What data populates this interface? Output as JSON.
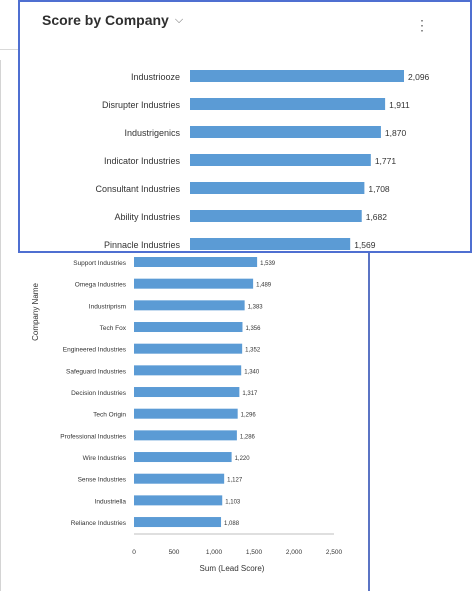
{
  "card": {
    "title": "Score by Company"
  },
  "colors": {
    "bar": "#5b9bd5",
    "accent_border": "#4f6fd1"
  },
  "chart_data": [
    {
      "type": "bar",
      "orientation": "horizontal",
      "categories": [
        "Industriooze",
        "Disrupter Industries",
        "Industrigenics",
        "Indicator Industries",
        "Consultant Industries",
        "Ability Industries",
        "Pinnacle Industries"
      ],
      "values": [
        2096,
        1911,
        1870,
        1771,
        1708,
        1682,
        1569
      ],
      "value_labels": [
        "2,096",
        "1,911",
        "1,870",
        "1,771",
        "1,708",
        "1,682",
        "1,569"
      ]
    },
    {
      "type": "bar",
      "orientation": "horizontal",
      "ylabel": "Company Name",
      "xlabel": "Sum (Lead Score)",
      "xlim": [
        0,
        2500
      ],
      "xticks": [
        "0",
        "500",
        "1,000",
        "1,500",
        "2,000",
        "2,500"
      ],
      "categories": [
        "Support Industries",
        "Omega Industries",
        "Industriprism",
        "Tech Fox",
        "Engineered Industries",
        "Safeguard Industries",
        "Decision Industries",
        "Tech Origin",
        "Professional Industries",
        "Wire Industries",
        "Sense Industries",
        "Industriella",
        "Reliance Industries"
      ],
      "values": [
        1539,
        1489,
        1383,
        1356,
        1352,
        1340,
        1317,
        1296,
        1286,
        1220,
        1127,
        1103,
        1088
      ],
      "value_labels": [
        "1,539",
        "1,489",
        "1,383",
        "1,356",
        "1,352",
        "1,340",
        "1,317",
        "1,296",
        "1,286",
        "1,220",
        "1,127",
        "1,103",
        "1,088"
      ]
    }
  ]
}
